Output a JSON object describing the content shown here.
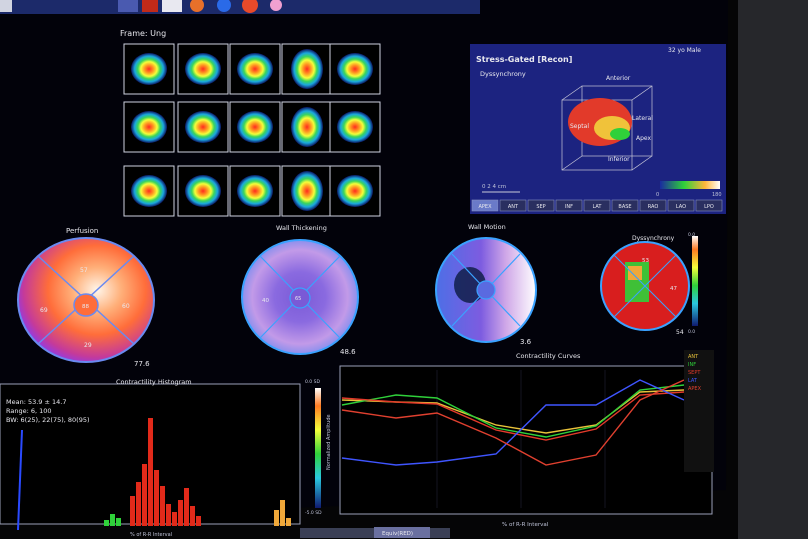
{
  "frame": {
    "label": "Frame: Ung"
  },
  "recon": {
    "title": "Stress-Gated [Recon]",
    "patient": "32 yo  Male",
    "mode": "Dyssynchrony",
    "axes": {
      "anterior": "Anterior",
      "lateral": "Lateral",
      "apex": "Apex",
      "inferior": "Inferior",
      "septal": "Septal"
    },
    "scale_text": "0    2    4 cm",
    "colorbar_ticks": [
      "0",
      "180"
    ],
    "buttons": [
      "APEX",
      "ANT",
      "SEP",
      "INF",
      "LAT",
      "BASE",
      "RAO",
      "LAO",
      "LPO"
    ]
  },
  "polar_maps": {
    "perfusion": {
      "title": "Perfusion",
      "value": "77.6",
      "segments": [
        "57",
        "69",
        "60",
        "29",
        "88"
      ]
    },
    "wall_thickening": {
      "title": "Wall Thickening",
      "value": "48.6",
      "segments": [
        "40",
        "65"
      ]
    },
    "wall_motion": {
      "title": "Wall Motion",
      "value": "3.6"
    },
    "dyssynchrony": {
      "title": "Dyssynchrony",
      "value": "54",
      "segments": [
        "53",
        "47"
      ],
      "scale_ticks": [
        "0.0",
        "0.0"
      ]
    }
  },
  "histogram": {
    "title": "Contractility Histogram",
    "stats": [
      "Mean: 53.9 ± 14.7",
      "Range: 6, 100",
      "BW: 6(25), 22(75), 80(95)"
    ],
    "colorbar_label": "Normalized Amplitude",
    "colorbar_ticks": [
      "0.0 SD",
      "-5.0 SD"
    ],
    "xlabel": "% of R-R Interval"
  },
  "curves": {
    "title": "Contractility Curves",
    "xlabel": "% of R-R Interval",
    "legend": [
      "ANT",
      "INF",
      "SEPT",
      "LAT",
      "APEX"
    ],
    "colors": {
      "ANT": "#e8c23a",
      "INF": "#2fd13a",
      "SEPT": "#e33a2a",
      "LAT": "#3f55ff",
      "APEX": "#e0402f"
    }
  },
  "status": {
    "tab_label": "Equiv(RED)"
  }
}
